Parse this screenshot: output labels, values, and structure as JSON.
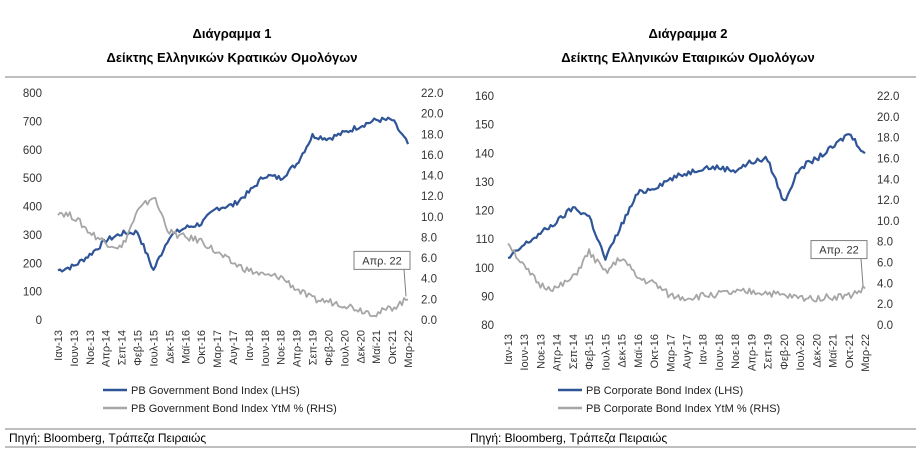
{
  "source_left": "Πηγή: Bloomberg, Τράπεζα Πειραιώς",
  "source_right": "Πηγή: Bloomberg, Τράπεζα Πειραιώς",
  "colors": {
    "lhs": "#2F5597",
    "rhs": "#A6A6A6",
    "frame": "#7F7F7F"
  },
  "chart_data": [
    {
      "type": "line",
      "title": "Διάγραμμα 1",
      "subtitle": "Δείκτης Ελληνικών Κρατικών Ομολόγων",
      "x_labels": [
        "Ιαν-13",
        "Ιουν-13",
        "Νοε-13",
        "Απρ-14",
        "Σεπ-14",
        "Φεβ-15",
        "Ιουλ-15",
        "Δεκ-15",
        "Μαϊ-16",
        "Οκτ-16",
        "Μαρ-17",
        "Αυγ-17",
        "Ιαν-18",
        "Ιουν-18",
        "Νοε-18",
        "Απρ-19",
        "Σεπ-19",
        "Φεβ-20",
        "Ιουλ-20",
        "Δεκ-20",
        "Μαϊ-21",
        "Οκτ-21",
        "Μαρ-22"
      ],
      "ylim_left": [
        0,
        800
      ],
      "yticks_left": [
        0,
        100,
        200,
        300,
        400,
        500,
        600,
        700,
        800
      ],
      "ylim_right": [
        0,
        22
      ],
      "yticks_right": [
        "0.0",
        "2.0",
        "4.0",
        "6.0",
        "8.0",
        "10.0",
        "12.0",
        "14.0",
        "16.0",
        "18.0",
        "20.0",
        "22.0"
      ],
      "callout": "Απρ. 22",
      "series": [
        {
          "name": "PB Government Bond Index (LHS)",
          "axis": "left",
          "color": "#2F5597",
          "values": [
            175,
            190,
            230,
            280,
            305,
            310,
            175,
            295,
            325,
            340,
            395,
            405,
            450,
            510,
            500,
            550,
            650,
            640,
            660,
            685,
            705,
            705,
            620
          ]
        },
        {
          "name": "PB Government Bond Index YtM % (RHS)",
          "axis": "right",
          "color": "#A6A6A6",
          "values": [
            10.5,
            10.0,
            8.5,
            7.5,
            7.0,
            10.5,
            12.0,
            8.5,
            8.0,
            7.7,
            6.5,
            5.5,
            4.8,
            4.3,
            4.2,
            3.0,
            2.0,
            1.8,
            1.5,
            1.0,
            0.6,
            1.2,
            2.0
          ]
        }
      ]
    },
    {
      "type": "line",
      "title": "Διάγραμμα 2",
      "subtitle": "Δείκτης Ελληνικών Εταιρικών Ομολόγων",
      "x_labels": [
        "Ιαν-13",
        "Ιουν-13",
        "Νοε-13",
        "Απρ-14",
        "Σεπ-14",
        "Φεβ-15",
        "Ιουλ-15",
        "Δεκ-15",
        "Μαϊ-16",
        "Οκτ-16",
        "Μαρ-17",
        "Αυγ-17",
        "Ιαν-18",
        "Ιουν-18",
        "Νοε-18",
        "Απρ-19",
        "Σεπ-19",
        "Φεβ-20",
        "Ιουλ-20",
        "Δεκ-20",
        "Μαϊ-21",
        "Οκτ-21",
        "Μαρ-22"
      ],
      "ylim_left": [
        80,
        160
      ],
      "yticks_left": [
        80,
        90,
        100,
        110,
        120,
        130,
        140,
        150,
        160
      ],
      "ylim_right": [
        0,
        22
      ],
      "yticks_right": [
        "0.0",
        "2.0",
        "4.0",
        "6.0",
        "8.0",
        "10.0",
        "12.0",
        "14.0",
        "16.0",
        "18.0",
        "20.0",
        "22.0"
      ],
      "callout": "Απρ. 22",
      "series": [
        {
          "name": "PB Corporate Bond Index (LHS)",
          "axis": "left",
          "color": "#2F5597",
          "values": [
            103,
            108,
            112,
            116,
            121,
            118,
            103,
            115,
            126,
            128,
            131,
            133,
            135,
            135,
            134,
            137,
            138,
            123,
            135,
            138,
            142,
            147,
            140
          ]
        },
        {
          "name": "PB Corporate Bond Index  YtM % (RHS)",
          "axis": "right",
          "color": "#A6A6A6",
          "values": [
            8.0,
            5.5,
            3.8,
            3.5,
            4.5,
            7.0,
            5.0,
            6.5,
            4.5,
            4.0,
            2.8,
            2.6,
            2.8,
            3.0,
            3.1,
            3.2,
            3.1,
            2.8,
            2.6,
            2.6,
            2.7,
            2.8,
            3.5
          ]
        }
      ]
    }
  ]
}
